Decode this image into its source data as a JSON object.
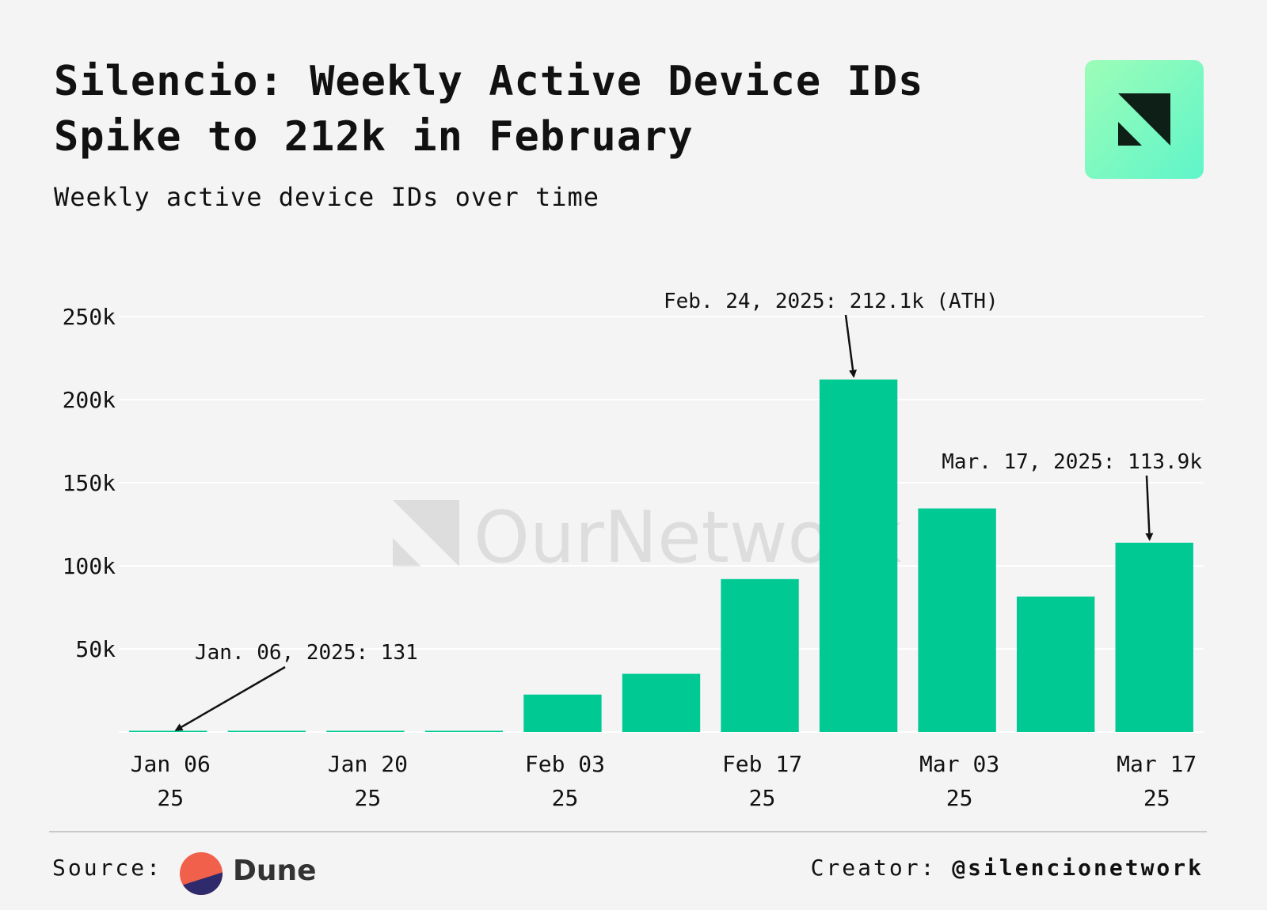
{
  "header": {
    "title": "Silencio: Weekly Active Device IDs Spike to 212k in February",
    "subtitle": "Weekly active device IDs over time"
  },
  "brand": {
    "logo_icon": "ournetwork-logo-icon",
    "watermark_text": "OurNetwork"
  },
  "colors": {
    "bar": "#00c994",
    "grid": "#ffffff",
    "background": "#f4f4f4"
  },
  "chart_data": {
    "type": "bar",
    "title": "Weekly active device IDs over time",
    "categories": [
      "2025-01-06",
      "2025-01-13",
      "2025-01-20",
      "2025-01-27",
      "2025-02-03",
      "2025-02-10",
      "2025-02-17",
      "2025-02-24",
      "2025-03-03",
      "2025-03-10",
      "2025-03-17"
    ],
    "values": [
      131,
      150,
      200,
      250,
      22500,
      35000,
      92000,
      212100,
      134500,
      81500,
      113900
    ],
    "x_tick_labels": [
      {
        "index": 0,
        "line1": "Jan 06",
        "line2": "25"
      },
      {
        "index": 2,
        "line1": "Jan 20",
        "line2": "25"
      },
      {
        "index": 4,
        "line1": "Feb 03",
        "line2": "25"
      },
      {
        "index": 6,
        "line1": "Feb 17",
        "line2": "25"
      },
      {
        "index": 8,
        "line1": "Mar 03",
        "line2": "25"
      },
      {
        "index": 10,
        "line1": "Mar 17",
        "line2": "25"
      }
    ],
    "y_ticks": [
      {
        "value": 50000,
        "label": "50k"
      },
      {
        "value": 100000,
        "label": "100k"
      },
      {
        "value": 150000,
        "label": "150k"
      },
      {
        "value": 200000,
        "label": "200k"
      },
      {
        "value": 250000,
        "label": "250k"
      }
    ],
    "ylim": [
      0,
      250000
    ],
    "xlabel": "",
    "ylabel": "",
    "grid": true,
    "annotations": [
      {
        "index": 7,
        "text": "Feb. 24, 2025: 212.1k (ATH)"
      },
      {
        "index": 10,
        "text": "Mar. 17, 2025: 113.9k"
      },
      {
        "index": 0,
        "text": "Jan. 06, 2025: 131"
      }
    ]
  },
  "footer": {
    "source_label": "Source:",
    "source_name": "Dune",
    "source_icon": "dune-icon",
    "creator_label": "Creator:",
    "creator_handle": "@silencionetwork"
  }
}
